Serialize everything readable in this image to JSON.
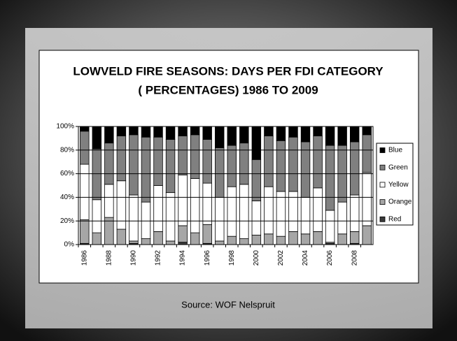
{
  "chart_data": {
    "type": "stacked_bar",
    "title": [
      "LOWVELD FIRE SEASONS: DAYS PER FDI CATEGORY",
      "( PERCENTAGES) 1986 TO 2009"
    ],
    "source": "Source: WOF Nelspruit",
    "categories": [
      "1986",
      null,
      "1988",
      null,
      "1990",
      null,
      "1992",
      null,
      "1994",
      null,
      "1996",
      null,
      "1998",
      null,
      "2000",
      null,
      "2002",
      null,
      "2004",
      null,
      "2006",
      null,
      "2008",
      null
    ],
    "series": [
      {
        "name": "Red",
        "color": "#3a3a3a",
        "values": [
          1,
          0,
          0,
          0,
          1,
          0,
          0,
          0,
          2,
          0,
          1,
          0,
          0,
          0,
          0,
          0,
          0,
          0,
          0,
          0,
          1,
          0,
          1,
          0
        ]
      },
      {
        "name": "Orange",
        "color": "#a6a6a6",
        "values": [
          20,
          10,
          23,
          13,
          2,
          5,
          11,
          3,
          14,
          10,
          16,
          3,
          7,
          5,
          8,
          9,
          7,
          11,
          9,
          11,
          1,
          9,
          10,
          16
        ]
      },
      {
        "name": "Yellow",
        "color": "#ffffff",
        "values": [
          47,
          28,
          28,
          41,
          39,
          31,
          39,
          41,
          43,
          46,
          35,
          37,
          42,
          46,
          29,
          40,
          38,
          34,
          31,
          37,
          27,
          27,
          31,
          45
        ]
      },
      {
        "name": "Green",
        "color": "#808080",
        "values": [
          28,
          43,
          35,
          38,
          51,
          55,
          41,
          45,
          33,
          37,
          37,
          42,
          35,
          35,
          35,
          43,
          43,
          46,
          47,
          44,
          55,
          48,
          45,
          32
        ]
      },
      {
        "name": "Blue",
        "color": "#000000",
        "values": [
          4,
          19,
          14,
          8,
          7,
          9,
          9,
          11,
          8,
          7,
          11,
          18,
          16,
          14,
          28,
          8,
          12,
          9,
          13,
          8,
          16,
          16,
          13,
          7
        ]
      }
    ],
    "ylim": [
      0,
      100
    ],
    "yticks": [
      {
        "value": 0,
        "label": "0%"
      },
      {
        "value": 20,
        "label": "20%"
      },
      {
        "value": 40,
        "label": "40%"
      },
      {
        "value": 60,
        "label": "60%"
      },
      {
        "value": 80,
        "label": "80%"
      },
      {
        "value": 100,
        "label": "100%"
      }
    ],
    "grid": true,
    "legend": "right"
  }
}
